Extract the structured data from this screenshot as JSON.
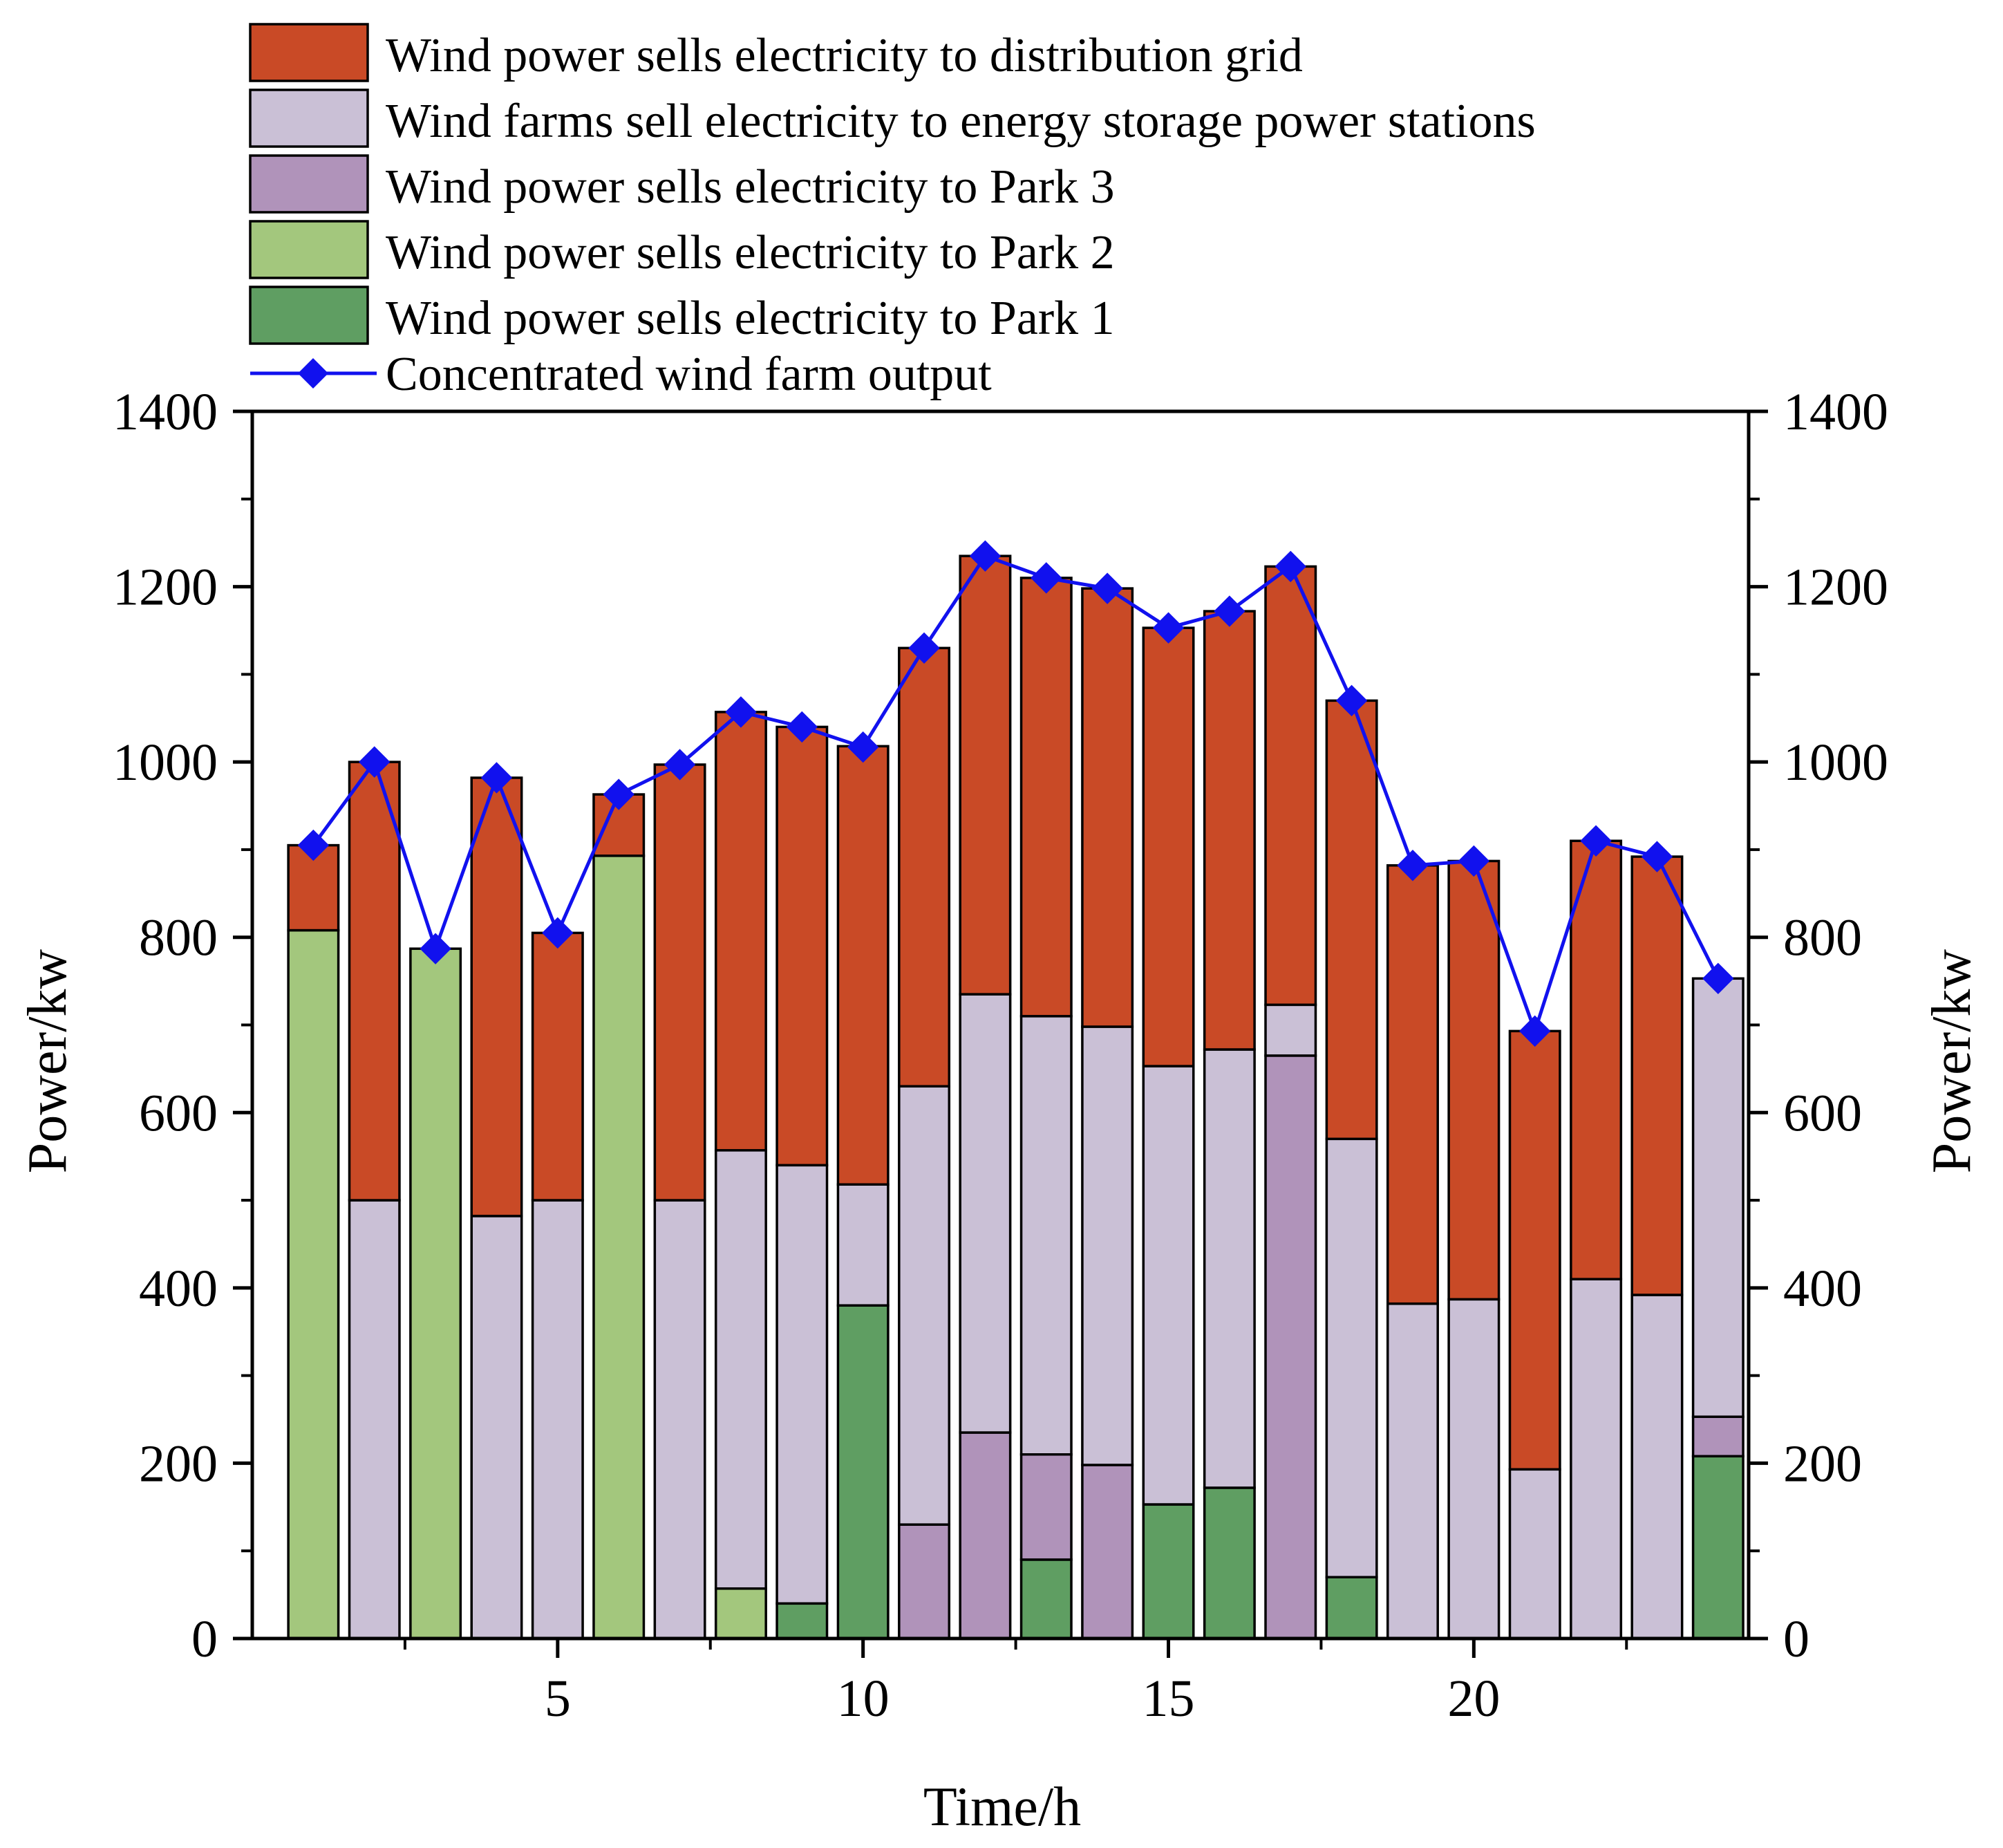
{
  "chart_data": {
    "type": "bar",
    "stacked": true,
    "xlabel": "Time/h",
    "ylabel": "Power/kw",
    "ylabel_right": "Power/kw",
    "ylim": [
      0,
      1400
    ],
    "xlim": [
      0,
      24.5
    ],
    "yticks": [
      0,
      200,
      400,
      600,
      800,
      1000,
      1200,
      1400
    ],
    "xticks": [
      5,
      10,
      15,
      20
    ],
    "legend_position": "top",
    "hours": [
      1,
      2,
      3,
      4,
      5,
      6,
      7,
      8,
      9,
      10,
      11,
      12,
      13,
      14,
      15,
      16,
      17,
      18,
      19,
      20,
      21,
      22,
      23,
      24
    ],
    "series": [
      {
        "name": "Wind power sells electricity to Park 1",
        "color": "#5f9e62",
        "values": [
          0,
          0,
          0,
          0,
          0,
          0,
          0,
          0,
          40,
          380,
          0,
          0,
          90,
          0,
          153,
          172,
          0,
          70,
          0,
          0,
          0,
          0,
          0,
          208
        ]
      },
      {
        "name": "Wind power sells electricity to Park 2",
        "color": "#a3c77d",
        "values": [
          808,
          0,
          787,
          0,
          0,
          893,
          0,
          57,
          0,
          0,
          0,
          0,
          0,
          0,
          0,
          0,
          0,
          0,
          0,
          0,
          0,
          0,
          0,
          0
        ]
      },
      {
        "name": "Wind power sells electricity to Park 3",
        "color": "#b093ba",
        "values": [
          0,
          0,
          0,
          0,
          0,
          0,
          0,
          0,
          0,
          0,
          130,
          235,
          120,
          198,
          0,
          0,
          665,
          0,
          0,
          0,
          0,
          0,
          0,
          45
        ]
      },
      {
        "name": "Wind farms sell electricity to energy storage power stations",
        "color": "#cac0d6",
        "values": [
          0,
          500,
          0,
          482,
          500,
          0,
          500,
          500,
          500,
          138,
          500,
          500,
          500,
          500,
          500,
          500,
          58,
          500,
          382,
          387,
          193,
          410,
          392,
          500
        ]
      },
      {
        "name": "Wind power sells electricity to distribution grid",
        "color": "#c94a26",
        "values": [
          97,
          500,
          0,
          500,
          305,
          70,
          497,
          500,
          500,
          500,
          500,
          500,
          500,
          500,
          500,
          500,
          500,
          500,
          500,
          500,
          500,
          500,
          500,
          0
        ]
      }
    ],
    "line": {
      "name": "Concentrated wind farm output",
      "color": "#1111ee",
      "values": [
        905,
        1000,
        787,
        982,
        805,
        963,
        997,
        1057,
        1040,
        1017,
        1130,
        1235,
        1210,
        1198,
        1153,
        1172,
        1223,
        1070,
        882,
        887,
        693,
        910,
        892,
        753
      ]
    },
    "legend": [
      {
        "label": "Wind power sells electricity to distribution grid",
        "color": "#c94a26",
        "kind": "box"
      },
      {
        "label": "Wind farms sell electricity to energy storage power stations",
        "color": "#cac0d6",
        "kind": "box"
      },
      {
        "label": "Wind power sells electricity to Park 3",
        "color": "#b093ba",
        "kind": "box"
      },
      {
        "label": "Wind power sells electricity to Park 2",
        "color": "#a3c77d",
        "kind": "box"
      },
      {
        "label": "Wind power sells electricity to Park 1",
        "color": "#5f9e62",
        "kind": "box"
      },
      {
        "label": "Concentrated wind farm output",
        "color": "#1111ee",
        "kind": "line"
      }
    ]
  }
}
